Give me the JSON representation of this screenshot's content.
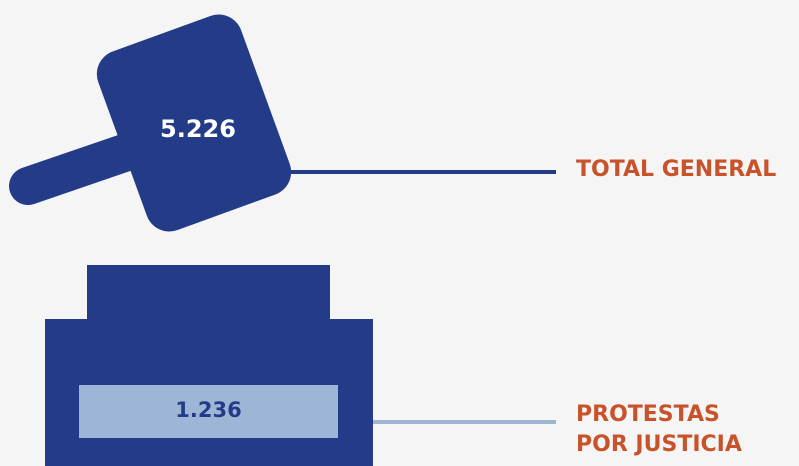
{
  "colors": {
    "background": "#f5f5f5",
    "primary_navy": "#243c88",
    "highlight_light_blue": "#9eb6d6",
    "label_orange": "#c8532a",
    "value_white": "#ffffff",
    "value_navy": "#243c88"
  },
  "icons": {
    "hammer": "gavel-icon",
    "block": "sound-block-icon"
  },
  "total": {
    "value": "5.226",
    "label": "TOTAL GENERAL"
  },
  "protests": {
    "value": "1.236",
    "label_line1": "PROTESTAS",
    "label_line2": "POR JUSTICIA"
  }
}
